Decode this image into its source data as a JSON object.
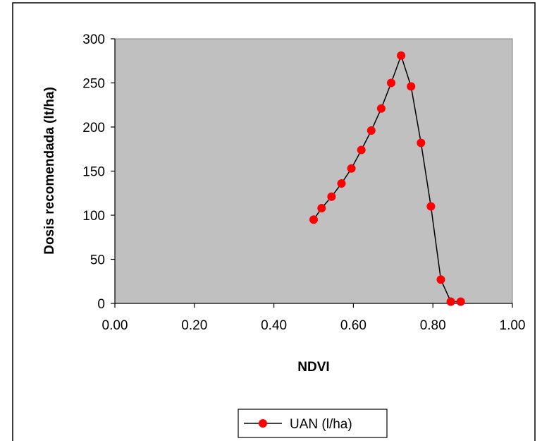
{
  "chart_data": {
    "type": "line",
    "title": "",
    "xlabel": "NDVI",
    "ylabel": "Dosis recomendada (lt/ha)",
    "xlim": [
      0,
      1
    ],
    "ylim": [
      0,
      300
    ],
    "x_ticks": [
      "0.00",
      "0.20",
      "0.40",
      "0.60",
      "0.80",
      "1.00"
    ],
    "y_ticks": [
      "0",
      "50",
      "100",
      "150",
      "200",
      "250",
      "300"
    ],
    "grid": false,
    "legend": "bottom-center",
    "plot_background": "#c0c0c0",
    "series": [
      {
        "name": "UAN (l/ha)",
        "line_color": "#000000",
        "marker_color": "#ff0000",
        "x": [
          0.5,
          0.52,
          0.545,
          0.57,
          0.595,
          0.62,
          0.645,
          0.67,
          0.695,
          0.72,
          0.745,
          0.77,
          0.795,
          0.82,
          0.845,
          0.87
        ],
        "y": [
          95,
          108,
          121,
          136,
          153,
          174,
          196,
          221,
          250,
          281,
          246,
          182,
          110,
          27,
          2,
          2
        ]
      }
    ]
  }
}
